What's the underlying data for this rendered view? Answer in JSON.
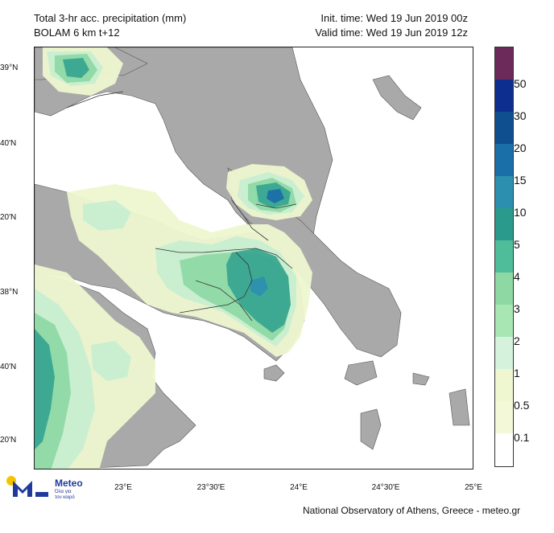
{
  "header": {
    "title_line1": "Total 3-hr acc. precipitation (mm)",
    "title_line2": "BOLAM 6 km t+12",
    "init_time": "Init. time: Wed 19 Jun 2019 00z",
    "valid_time": "Valid time: Wed 19 Jun 2019 12z"
  },
  "axes": {
    "lat_labels": [
      "39°N",
      "40'N",
      "20'N",
      "38°N",
      "40'N",
      "20'N"
    ],
    "lon_labels": [
      "23°E",
      "23°30'E",
      "24°E",
      "24°30'E",
      "25°E"
    ]
  },
  "legend": {
    "labels": [
      "50",
      "30",
      "20",
      "15",
      "10",
      "5",
      "4",
      "3",
      "2",
      "1",
      "0.5",
      "0.1"
    ],
    "colors": [
      "#6b2a5a",
      "#0d2e8e",
      "#0f4f8f",
      "#1a6fa8",
      "#2d8fb0",
      "#2a9a8c",
      "#4fbc9a",
      "#8ed8a4",
      "#a8e6b4",
      "#d4f2dc",
      "#eef7d0",
      "#f2f8d8",
      "#ffffff"
    ]
  },
  "colors": {
    "land": "#a9a9a9",
    "sea": "#ffffff",
    "border": "#333333"
  },
  "logo": {
    "name": "Meteo",
    "tagline1": "Όλα για",
    "tagline2": "τον καιρό"
  },
  "credit": "National Observatory of Athens, Greece - meteo.gr"
}
